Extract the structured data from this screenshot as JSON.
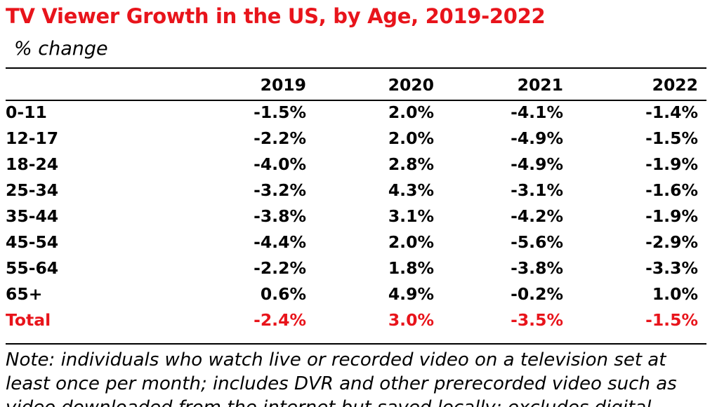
{
  "title": "TV Viewer Growth in the US, by Age, 2019-2022",
  "subtitle": "% change",
  "chart_data": {
    "type": "table",
    "columns": [
      "2019",
      "2020",
      "2021",
      "2022"
    ],
    "rows": [
      {
        "label": "0-11",
        "values": [
          "-1.5%",
          "2.0%",
          "-4.1%",
          "-1.4%"
        ]
      },
      {
        "label": "12-17",
        "values": [
          "-2.2%",
          "2.0%",
          "-4.9%",
          "-1.5%"
        ]
      },
      {
        "label": "18-24",
        "values": [
          "-4.0%",
          "2.8%",
          "-4.9%",
          "-1.9%"
        ]
      },
      {
        "label": "25-34",
        "values": [
          "-3.2%",
          "4.3%",
          "-3.1%",
          "-1.6%"
        ]
      },
      {
        "label": "35-44",
        "values": [
          "-3.8%",
          "3.1%",
          "-4.2%",
          "-1.9%"
        ]
      },
      {
        "label": "45-54",
        "values": [
          "-4.4%",
          "2.0%",
          "-5.6%",
          "-2.9%"
        ]
      },
      {
        "label": "55-64",
        "values": [
          "-2.2%",
          "1.8%",
          "-3.8%",
          "-3.3%"
        ]
      },
      {
        "label": "65+",
        "values": [
          "0.6%",
          "4.9%",
          "-0.2%",
          "1.0%"
        ]
      }
    ],
    "total": {
      "label": "Total",
      "values": [
        "-2.4%",
        "3.0%",
        "-3.5%",
        "-1.5%"
      ]
    }
  },
  "note": "Note: individuals who watch live or recorded video on a television set at least once per month; includes DVR and other prerecorded video such as video downloaded from the internet but saved locally; excludes digital",
  "colors": {
    "accent": "#e8141b",
    "text": "#000000",
    "background": "#ffffff"
  }
}
